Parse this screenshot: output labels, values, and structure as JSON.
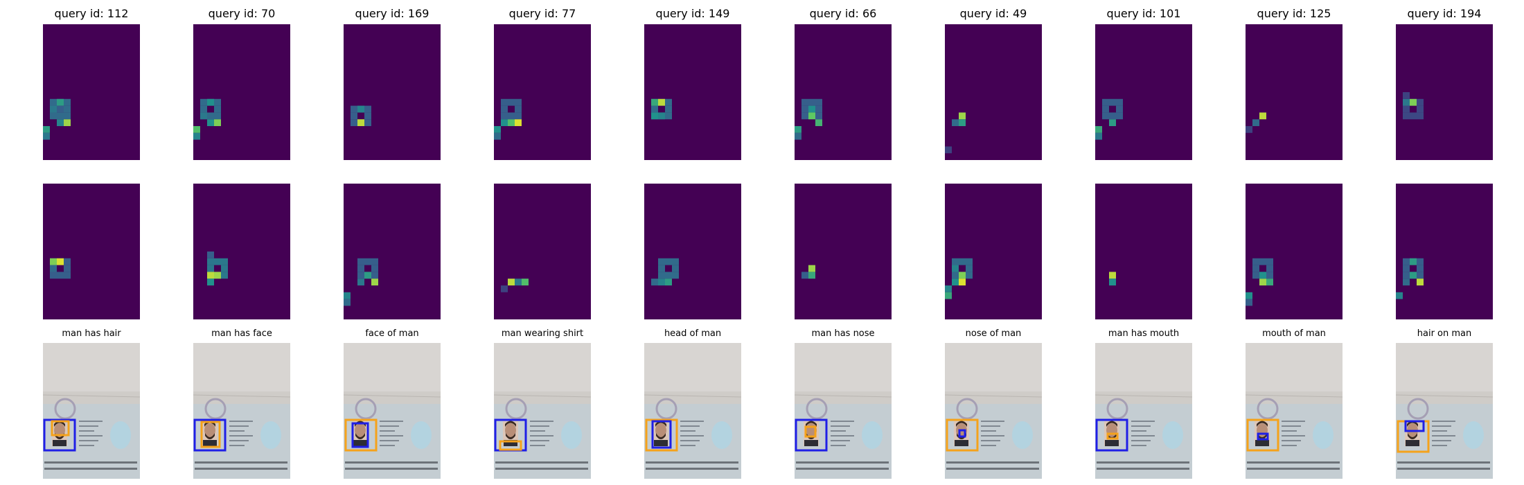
{
  "colors": {
    "heat_background": "#440154",
    "box_blue": "#1f1fe6",
    "box_orange": "#f5a21b",
    "paper": "#cfccc8"
  },
  "panels": [
    {
      "query_title": "query id: 112",
      "caption": "man has hair",
      "box1": {
        "color": "blue"
      },
      "box2": {
        "color": "orange"
      }
    },
    {
      "query_title": "query id: 70",
      "caption": "man has face",
      "box1": {
        "color": "blue"
      },
      "box2": {
        "color": "orange"
      }
    },
    {
      "query_title": "query id: 169",
      "caption": "face of man",
      "box1": {
        "color": "orange"
      },
      "box2": {
        "color": "blue"
      }
    },
    {
      "query_title": "query id: 77",
      "caption": "man wearing shirt",
      "box1": {
        "color": "blue"
      },
      "box2": {
        "color": "orange"
      }
    },
    {
      "query_title": "query id: 149",
      "caption": "head of man",
      "box1": {
        "color": "orange"
      },
      "box2": {
        "color": "blue"
      }
    },
    {
      "query_title": "query id: 66",
      "caption": "man has nose",
      "box1": {
        "color": "blue"
      },
      "box2": {
        "color": "orange"
      }
    },
    {
      "query_title": "query id: 49",
      "caption": "nose of man",
      "box1": {
        "color": "orange"
      },
      "box2": {
        "color": "blue"
      }
    },
    {
      "query_title": "query id: 101",
      "caption": "man has mouth",
      "box1": {
        "color": "blue"
      },
      "box2": {
        "color": "orange"
      }
    },
    {
      "query_title": "query id: 125",
      "caption": "mouth of man",
      "box1": {
        "color": "orange"
      },
      "box2": {
        "color": "blue"
      }
    },
    {
      "query_title": "query id: 194",
      "caption": "hair on man",
      "box1": {
        "color": "orange"
      },
      "box2": {
        "color": "blue"
      }
    }
  ]
}
